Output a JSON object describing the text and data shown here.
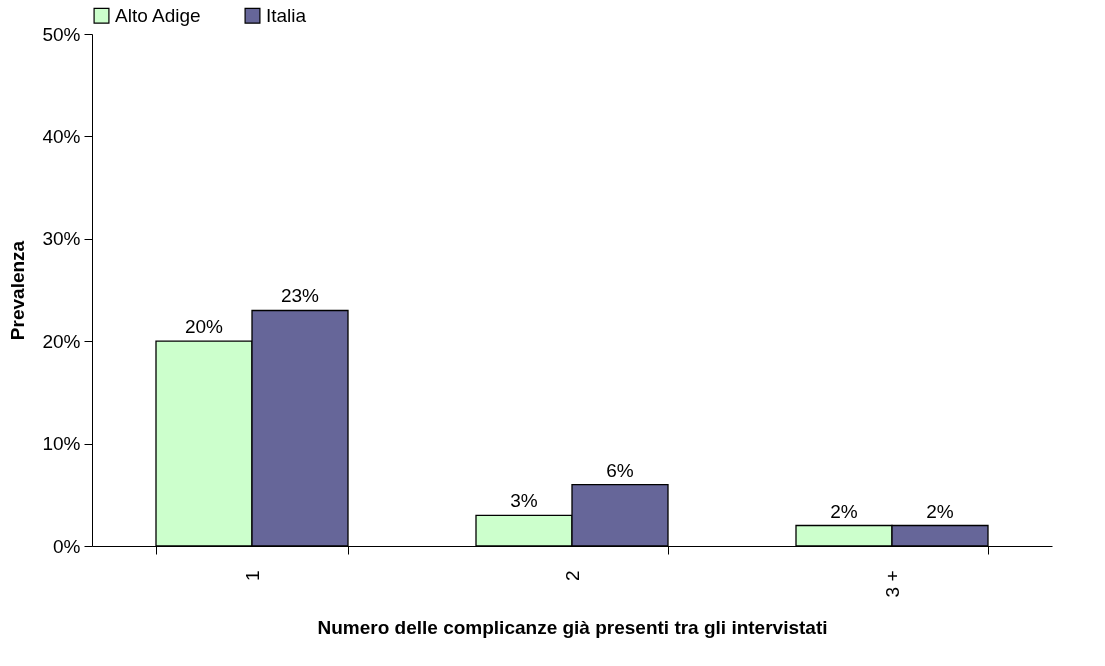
{
  "chart_data": {
    "type": "bar",
    "xlabel": "Numero delle complicanze già presenti tra gli intervistati",
    "ylabel": "Prevalenza",
    "categories": [
      "1",
      "2",
      "3 +"
    ],
    "series": [
      {
        "name": "Alto Adige",
        "color": "#ccffcc",
        "values": [
          20,
          3,
          2
        ],
        "value_labels": [
          "20%",
          "3%",
          "2%"
        ]
      },
      {
        "name": "Italia",
        "color": "#666699",
        "values": [
          23,
          6,
          2
        ],
        "value_labels": [
          "23%",
          "6%",
          "2%"
        ]
      }
    ],
    "ylim": [
      0,
      50
    ],
    "yticks": [
      {
        "value": 0,
        "label": "0%"
      },
      {
        "value": 10,
        "label": "10%"
      },
      {
        "value": 20,
        "label": "20%"
      },
      {
        "value": 30,
        "label": "30%"
      },
      {
        "value": 40,
        "label": "40%"
      },
      {
        "value": 50,
        "label": "50%"
      }
    ],
    "grid": false,
    "legend": "top"
  }
}
